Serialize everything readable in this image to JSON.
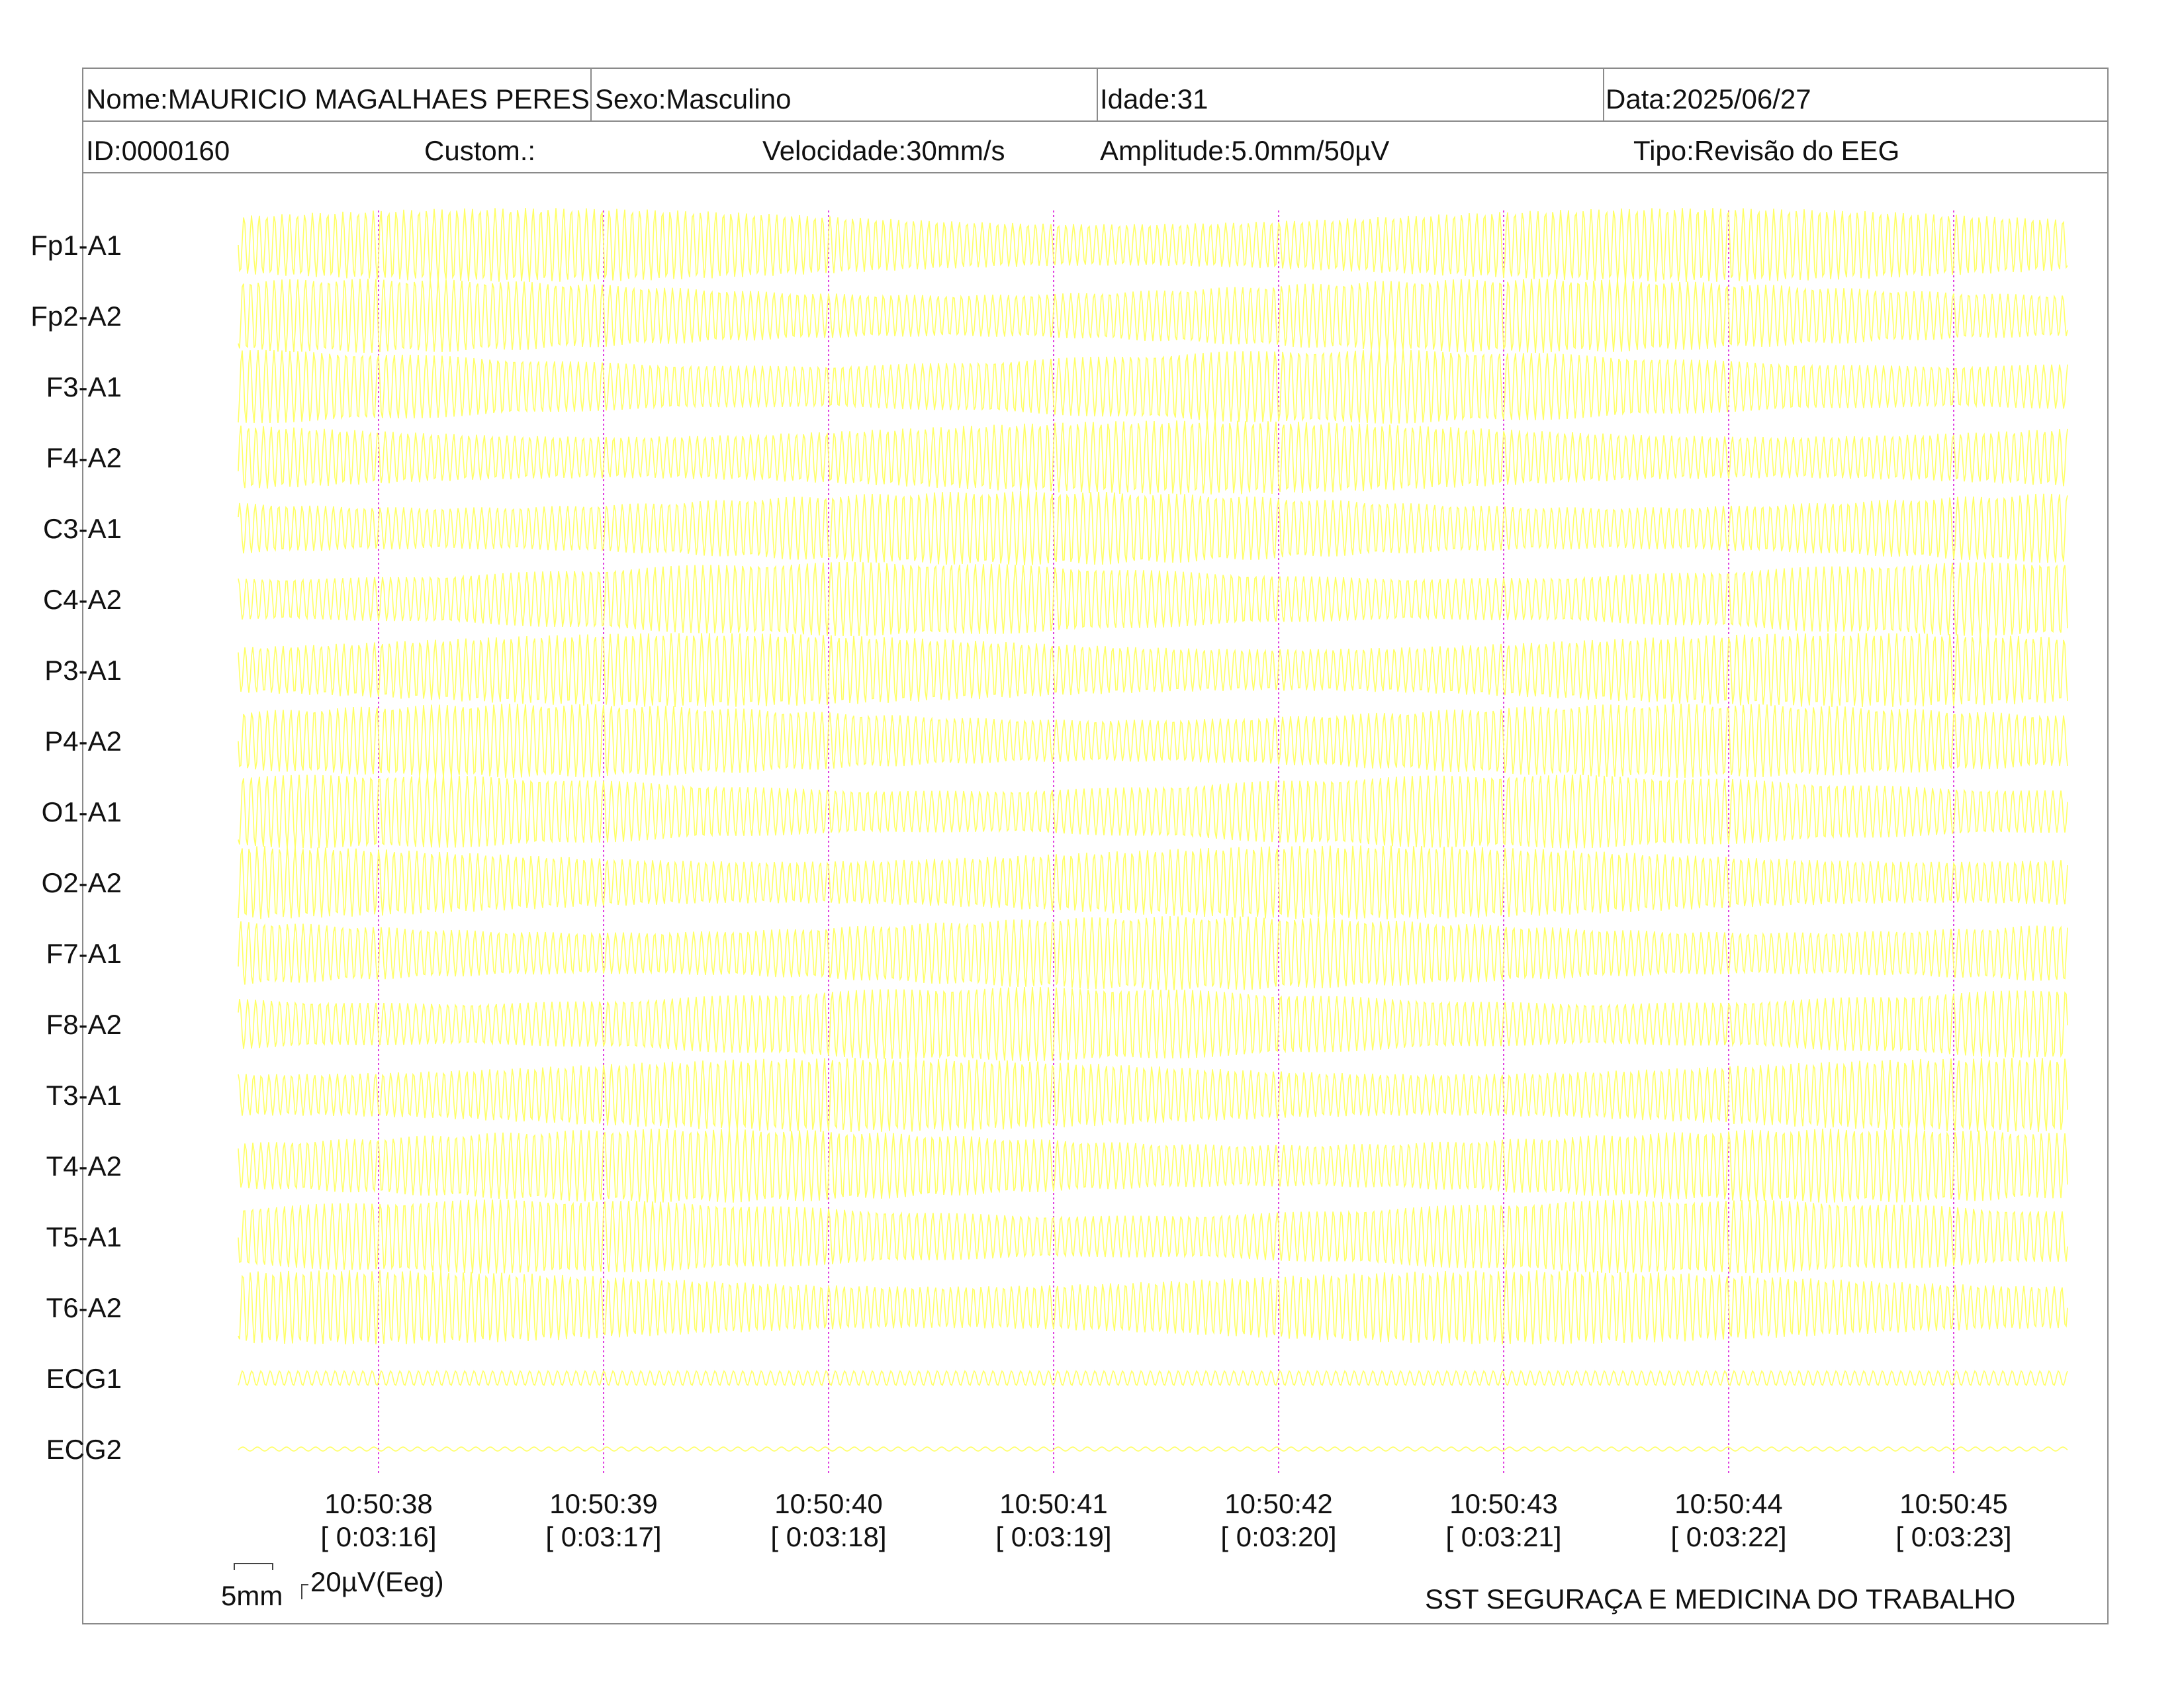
{
  "header": {
    "nome": "Nome:MAURICIO MAGALHAES PERES",
    "sexo": "Sexo:Masculino",
    "idade": "Idade:31",
    "data": "Data:2025/06/27",
    "id": "ID:0000160",
    "custom": "Custom.:",
    "velocidade": "Velocidade:30mm/s",
    "amplitude": "Amplitude:5.0mm/50µV",
    "tipo": "Tipo:Revisão do EEG"
  },
  "channels": [
    "Fp1-A1",
    "Fp2-A2",
    "F3-A1",
    "F4-A2",
    "C3-A1",
    "C4-A2",
    "P3-A1",
    "P4-A2",
    "O1-A1",
    "O2-A2",
    "F7-A1",
    "F8-A2",
    "T3-A1",
    "T4-A2",
    "T5-A1",
    "T6-A2",
    "ECG1",
    "ECG2"
  ],
  "time_marks": [
    {
      "clock": "10:50:38",
      "elapsed": "[ 0:03:16]"
    },
    {
      "clock": "10:50:39",
      "elapsed": "[ 0:03:17]"
    },
    {
      "clock": "10:50:40",
      "elapsed": "[ 0:03:18]"
    },
    {
      "clock": "10:50:41",
      "elapsed": "[ 0:03:19]"
    },
    {
      "clock": "10:50:42",
      "elapsed": "[ 0:03:20]"
    },
    {
      "clock": "10:50:43",
      "elapsed": "[ 0:03:21]"
    },
    {
      "clock": "10:50:44",
      "elapsed": "[ 0:03:22]"
    },
    {
      "clock": "10:50:45",
      "elapsed": "[ 0:03:23]"
    }
  ],
  "scale": {
    "time_label": "5mm",
    "amp_label": "20µV(Eeg)"
  },
  "footer": {
    "company": "SST SEGURAÇA E MEDICINA DO TRABALHO"
  },
  "colors": {
    "trace": "#ffff66",
    "time_marker": "#e040e0",
    "border": "#8a8a8a"
  }
}
